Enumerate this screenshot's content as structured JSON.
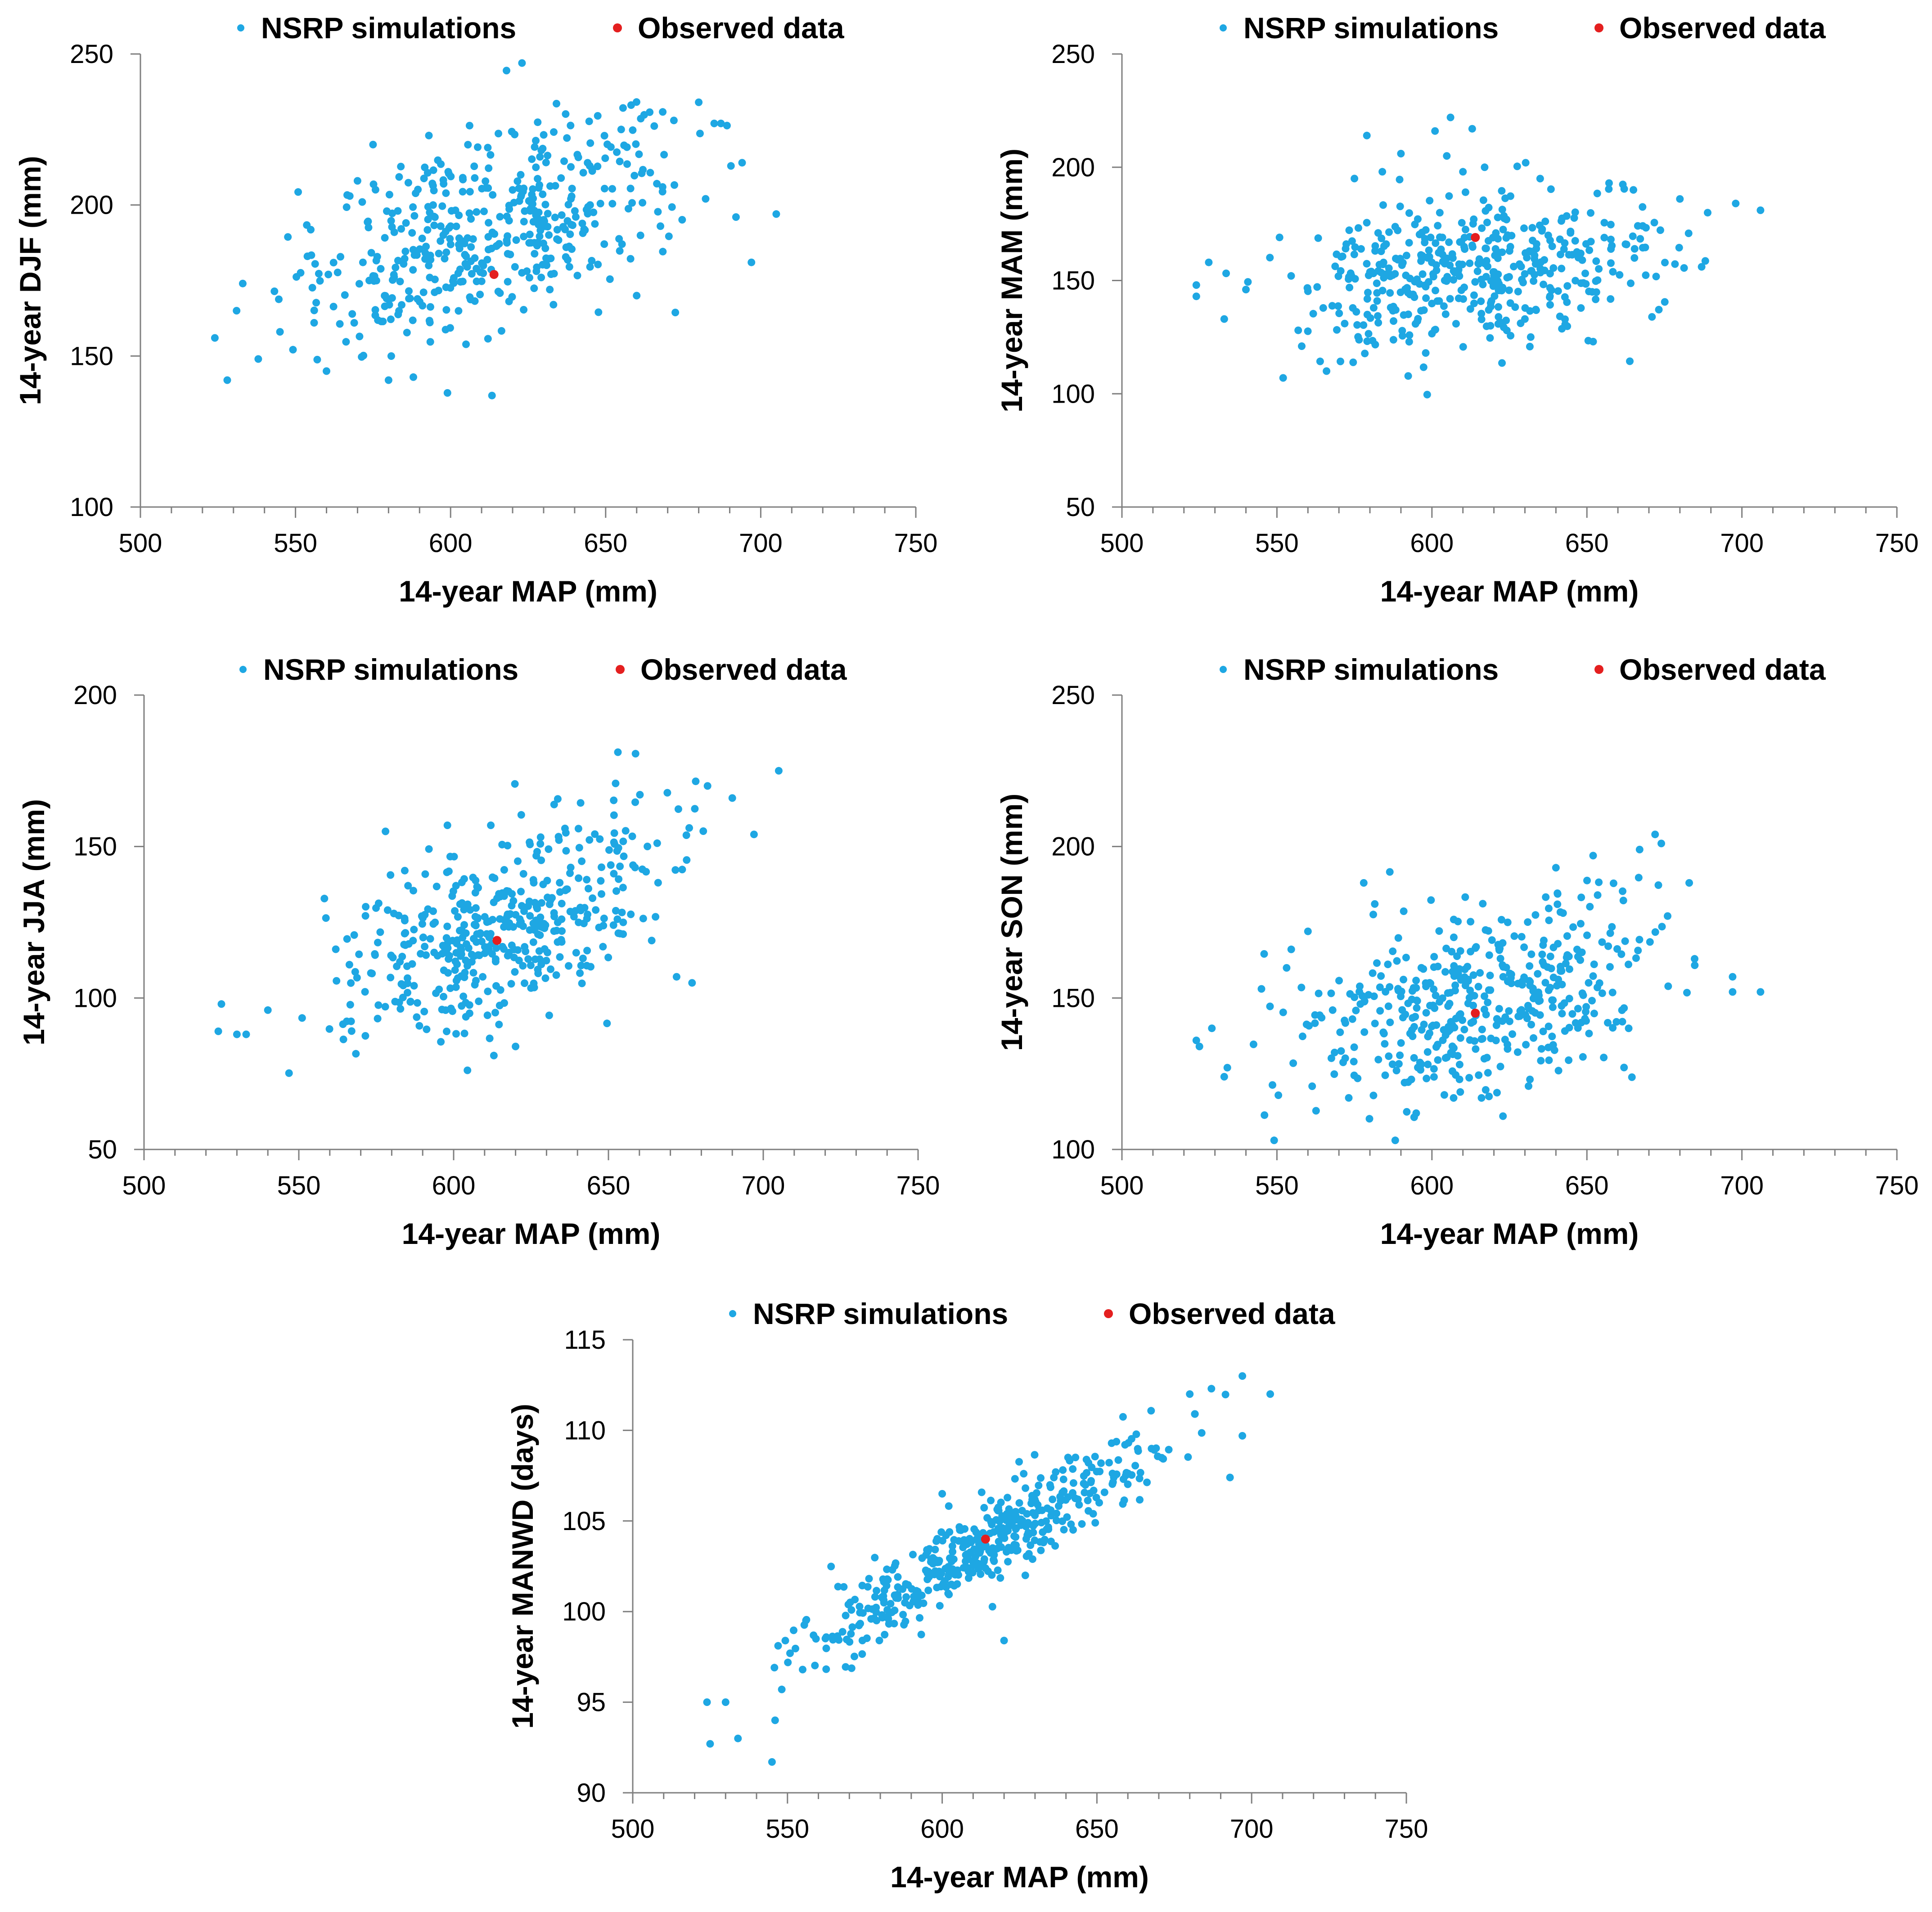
{
  "colors": {
    "sim": "#1ea7e3",
    "obs": "#e41f1f",
    "axis": "#7f7f7f"
  },
  "chart_data": [
    {
      "type": "scatter",
      "id": "djf",
      "legend": {
        "sim_label": "NSRP simulations",
        "obs_label": "Observed data",
        "position": "top"
      },
      "xlabel": "14-year MAP (mm)",
      "ylabel": "14-year DJF (mm)",
      "xlim": [
        500,
        750
      ],
      "ylim": [
        100,
        250
      ],
      "xticks": [
        500,
        550,
        600,
        650,
        700,
        750
      ],
      "yticks": [
        100,
        150,
        200,
        250
      ],
      "xticklabels": [
        "500",
        "550",
        "600",
        "650",
        "700",
        "750"
      ],
      "yticklabels": [
        "100",
        "150",
        "200",
        "250"
      ],
      "observed": {
        "x": 614,
        "y": 177
      },
      "sim_model": {
        "x_min": 523,
        "x_max": 705,
        "slope": 0.33,
        "intercept": -10,
        "noise": 16,
        "n": 450,
        "seed": 11
      },
      "sim_points": [
        [
          524,
          156
        ],
        [
          528,
          142
        ],
        [
          531,
          165
        ],
        [
          533,
          174
        ],
        [
          538,
          149
        ],
        [
          545,
          158
        ],
        [
          556,
          161
        ],
        [
          560,
          145
        ],
        [
          570,
          208
        ],
        [
          575,
          220
        ],
        [
          580,
          142
        ],
        [
          588,
          143
        ],
        [
          593,
          223
        ],
        [
          600,
          193
        ],
        [
          605,
          183
        ],
        [
          612,
          219
        ],
        [
          620,
          205
        ],
        [
          632,
          172
        ],
        [
          645,
          200
        ],
        [
          655,
          225
        ],
        [
          660,
          170
        ],
        [
          672,
          228
        ],
        [
          680,
          234
        ],
        [
          685,
          227
        ],
        [
          694,
          214
        ],
        [
          697,
          181
        ],
        [
          705,
          197
        ]
      ]
    },
    {
      "type": "scatter",
      "id": "mam",
      "legend": {
        "sim_label": "NSRP simulations",
        "obs_label": "Observed data",
        "position": "top"
      },
      "xlabel": "14-year MAP (mm)",
      "ylabel": "14-year MAM (mm)",
      "xlim": [
        500,
        750
      ],
      "ylim": [
        50,
        250
      ],
      "xticks": [
        500,
        550,
        600,
        650,
        700,
        750
      ],
      "yticks": [
        50,
        100,
        150,
        200,
        250
      ],
      "xticklabels": [
        "500",
        "550",
        "600",
        "650",
        "700",
        "750"
      ],
      "yticklabels": [
        "50",
        "100",
        "150",
        "200",
        "250"
      ],
      "observed": {
        "x": 614,
        "y": 169
      },
      "sim_model": {
        "x_min": 523,
        "x_max": 705,
        "slope": 0.12,
        "intercept": 80,
        "noise": 16,
        "n": 450,
        "seed": 23
      },
      "sim_points": [
        [
          524,
          143
        ],
        [
          524,
          148
        ],
        [
          528,
          158
        ],
        [
          533,
          133
        ],
        [
          540,
          146
        ],
        [
          552,
          107
        ],
        [
          558,
          121
        ],
        [
          566,
          110
        ],
        [
          575,
          195
        ],
        [
          579,
          214
        ],
        [
          584,
          198
        ],
        [
          590,
          206
        ],
        [
          598,
          118
        ],
        [
          601,
          216
        ],
        [
          606,
          222
        ],
        [
          610,
          198
        ],
        [
          613,
          217
        ],
        [
          617,
          200
        ],
        [
          630,
          133
        ],
        [
          652,
          123
        ],
        [
          665,
          190
        ],
        [
          680,
          186
        ],
        [
          698,
          184
        ],
        [
          706,
          181
        ]
      ]
    },
    {
      "type": "scatter",
      "id": "jja",
      "legend": {
        "sim_label": "NSRP simulations",
        "obs_label": "Observed data",
        "position": "top"
      },
      "xlabel": "14-year MAP (mm)",
      "ylabel": "14-year JJA (mm)",
      "xlim": [
        500,
        750
      ],
      "ylim": [
        50,
        200
      ],
      "xticks": [
        500,
        550,
        600,
        650,
        700,
        750
      ],
      "yticks": [
        50,
        100,
        150,
        200
      ],
      "xticklabels": [
        "500",
        "550",
        "600",
        "650",
        "700",
        "750"
      ],
      "yticklabels": [
        "50",
        "100",
        "150",
        "200"
      ],
      "observed": {
        "x": 614,
        "y": 119
      },
      "sim_model": {
        "x_min": 523,
        "x_max": 705,
        "slope": 0.36,
        "intercept": -99,
        "noise": 15,
        "n": 450,
        "seed": 37
      },
      "sim_points": [
        [
          524,
          89
        ],
        [
          525,
          98
        ],
        [
          530,
          88
        ],
        [
          533,
          88
        ],
        [
          540,
          96
        ],
        [
          578,
          155
        ],
        [
          598,
          157
        ],
        [
          612,
          157
        ],
        [
          613,
          81
        ],
        [
          620,
          84
        ],
        [
          672,
          107
        ],
        [
          677,
          105
        ],
        [
          682,
          170
        ],
        [
          690,
          166
        ],
        [
          697,
          154
        ],
        [
          705,
          175
        ]
      ]
    },
    {
      "type": "scatter",
      "id": "son",
      "legend": {
        "sim_label": "NSRP simulations",
        "obs_label": "Observed data",
        "position": "top"
      },
      "xlabel": "14-year MAP (mm)",
      "ylabel": "14-year SON (mm)",
      "xlim": [
        500,
        750
      ],
      "ylim": [
        100,
        250
      ],
      "xticks": [
        500,
        550,
        600,
        650,
        700,
        750
      ],
      "yticks": [
        100,
        150,
        200,
        250
      ],
      "xticklabels": [
        "500",
        "550",
        "600",
        "650",
        "700",
        "750"
      ],
      "yticklabels": [
        "100",
        "150",
        "200",
        "250"
      ],
      "observed": {
        "x": 614,
        "y": 145
      },
      "sim_model": {
        "x_min": 523,
        "x_max": 705,
        "slope": 0.22,
        "intercept": 14,
        "noise": 15,
        "n": 450,
        "seed": 53
      },
      "sim_points": [
        [
          524,
          136
        ],
        [
          525,
          134
        ],
        [
          529,
          140
        ],
        [
          533,
          124
        ],
        [
          534,
          127
        ],
        [
          545,
          153
        ],
        [
          560,
          172
        ],
        [
          578,
          188
        ],
        [
          604,
          118
        ],
        [
          607,
          117
        ],
        [
          616,
          117
        ],
        [
          640,
          193
        ],
        [
          652,
          197
        ],
        [
          667,
          199
        ],
        [
          672,
          204
        ],
        [
          674,
          201
        ],
        [
          683,
          188
        ],
        [
          697,
          152
        ],
        [
          697,
          157
        ],
        [
          706,
          152
        ]
      ]
    },
    {
      "type": "scatter",
      "id": "manwd",
      "legend": {
        "sim_label": "NSRP simulations",
        "obs_label": "Observed data",
        "position": "top"
      },
      "xlabel": "14-year MAP (mm)",
      "ylabel": "14-year MANWD (days)",
      "xlim": [
        500,
        750
      ],
      "ylim": [
        90,
        115
      ],
      "xticks": [
        500,
        550,
        600,
        650,
        700,
        750
      ],
      "yticks": [
        90,
        95,
        100,
        105,
        110,
        115
      ],
      "xticklabels": [
        "500",
        "550",
        "600",
        "650",
        "700",
        "750"
      ],
      "yticklabels": [
        "90",
        "95",
        "100",
        "105",
        "110",
        "115"
      ],
      "observed": {
        "x": 614,
        "y": 104
      },
      "sim_model": {
        "x_min": 523,
        "x_max": 705,
        "slope": 0.098,
        "intercept": 43.5,
        "noise": 1.2,
        "n": 450,
        "seed": 71
      },
      "sim_points": [
        [
          524,
          95
        ],
        [
          525,
          92.7
        ],
        [
          530,
          95
        ],
        [
          534,
          93
        ],
        [
          545,
          91.7
        ],
        [
          546,
          94
        ],
        [
          600,
          106.5
        ],
        [
          620,
          98.4
        ],
        [
          680,
          112
        ],
        [
          687,
          112.3
        ],
        [
          693,
          107.4
        ],
        [
          697,
          113
        ],
        [
          697,
          109.7
        ],
        [
          706,
          112
        ]
      ]
    }
  ]
}
